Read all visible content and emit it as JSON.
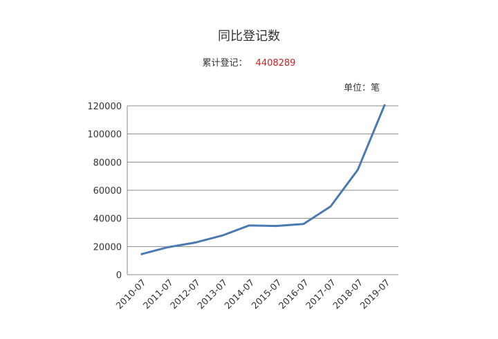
{
  "title": "同比登记数",
  "subtitle": {
    "label": "累计登记：",
    "total": "4408289"
  },
  "unit": "单位：笔",
  "colors": {
    "line": "#4a7ab0",
    "grid": "#888888",
    "total": "#cc2222"
  },
  "chart_data": {
    "type": "line",
    "categories": [
      "2010-07",
      "2011-07",
      "2012-07",
      "2013-07",
      "2014-07",
      "2015-07",
      "2016-07",
      "2017-07",
      "2018-07",
      "2019-07"
    ],
    "series": [
      {
        "values": [
          14500,
          19500,
          22800,
          27800,
          35000,
          34600,
          36000,
          48500,
          74500,
          121000
        ]
      }
    ],
    "ylim": [
      0,
      120000
    ],
    "yticks": [
      0,
      20000,
      40000,
      60000,
      80000,
      100000,
      120000
    ],
    "grid": true,
    "xlabel": "",
    "ylabel": ""
  }
}
